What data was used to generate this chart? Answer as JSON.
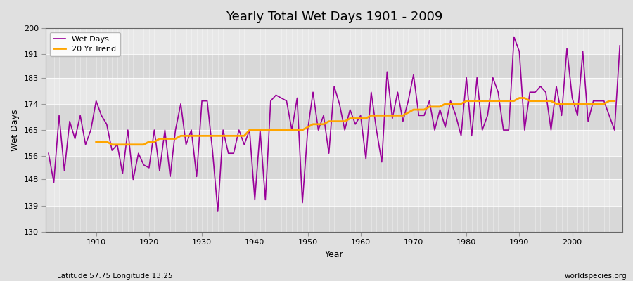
{
  "title": "Yearly Total Wet Days 1901 - 2009",
  "xlabel": "Year",
  "ylabel": "Wet Days",
  "subtitle_left": "Latitude 57.75 Longitude 13.25",
  "subtitle_right": "worldspecies.org",
  "ylim": [
    130,
    200
  ],
  "yticks": [
    130,
    139,
    148,
    156,
    165,
    174,
    183,
    191,
    200
  ],
  "xlim_start": 1901,
  "xlim_end": 2009,
  "line_color": "#990099",
  "trend_color": "#FFA500",
  "bg_color": "#E0E0E0",
  "band_light": "#E8E8E8",
  "band_dark": "#D8D8D8",
  "years": [
    1901,
    1902,
    1903,
    1904,
    1905,
    1906,
    1907,
    1908,
    1909,
    1910,
    1911,
    1912,
    1913,
    1914,
    1915,
    1916,
    1917,
    1918,
    1919,
    1920,
    1921,
    1922,
    1923,
    1924,
    1925,
    1926,
    1927,
    1928,
    1929,
    1930,
    1931,
    1932,
    1933,
    1934,
    1935,
    1936,
    1937,
    1938,
    1939,
    1940,
    1941,
    1942,
    1943,
    1944,
    1945,
    1946,
    1947,
    1948,
    1949,
    1950,
    1951,
    1952,
    1953,
    1954,
    1955,
    1956,
    1957,
    1958,
    1959,
    1960,
    1961,
    1962,
    1963,
    1964,
    1965,
    1966,
    1967,
    1968,
    1969,
    1970,
    1971,
    1972,
    1973,
    1974,
    1975,
    1976,
    1977,
    1978,
    1979,
    1980,
    1981,
    1982,
    1983,
    1984,
    1985,
    1986,
    1987,
    1988,
    1989,
    1990,
    1991,
    1992,
    1993,
    1994,
    1995,
    1996,
    1997,
    1998,
    1999,
    2000,
    2001,
    2002,
    2003,
    2004,
    2005,
    2006,
    2007,
    2008,
    2009
  ],
  "wet_days": [
    157,
    147,
    170,
    151,
    168,
    162,
    170,
    160,
    165,
    175,
    170,
    167,
    158,
    160,
    150,
    165,
    148,
    157,
    153,
    152,
    165,
    151,
    165,
    149,
    165,
    174,
    160,
    165,
    149,
    175,
    175,
    158,
    137,
    165,
    157,
    157,
    165,
    160,
    165,
    141,
    165,
    141,
    175,
    177,
    176,
    175,
    165,
    176,
    140,
    165,
    178,
    165,
    170,
    157,
    180,
    174,
    165,
    172,
    167,
    170,
    155,
    178,
    165,
    154,
    185,
    169,
    178,
    168,
    175,
    184,
    170,
    170,
    175,
    165,
    172,
    166,
    175,
    170,
    163,
    183,
    163,
    183,
    165,
    170,
    183,
    178,
    165,
    165,
    197,
    192,
    165,
    178,
    178,
    180,
    178,
    165,
    180,
    170,
    193,
    176,
    170,
    192,
    168,
    175,
    175,
    175,
    170,
    165,
    194
  ],
  "trend": [
    null,
    null,
    null,
    null,
    null,
    null,
    null,
    null,
    null,
    161,
    161,
    161,
    160,
    160,
    160,
    160,
    160,
    160,
    160,
    161,
    161,
    162,
    162,
    162,
    162,
    163,
    163,
    163,
    163,
    163,
    163,
    163,
    163,
    163,
    163,
    163,
    163,
    163,
    165,
    165,
    165,
    165,
    165,
    165,
    165,
    165,
    165,
    165,
    165,
    166,
    167,
    167,
    167,
    168,
    168,
    168,
    168,
    169,
    169,
    169,
    169,
    170,
    170,
    170,
    170,
    170,
    170,
    170,
    171,
    172,
    172,
    172,
    173,
    173,
    173,
    174,
    174,
    174,
    174,
    175,
    175,
    175,
    175,
    175,
    175,
    175,
    175,
    175,
    175,
    176,
    176,
    175,
    175,
    175,
    175,
    175,
    174,
    174,
    174,
    174,
    174,
    174,
    174,
    174,
    174,
    174,
    175,
    175,
    null
  ]
}
